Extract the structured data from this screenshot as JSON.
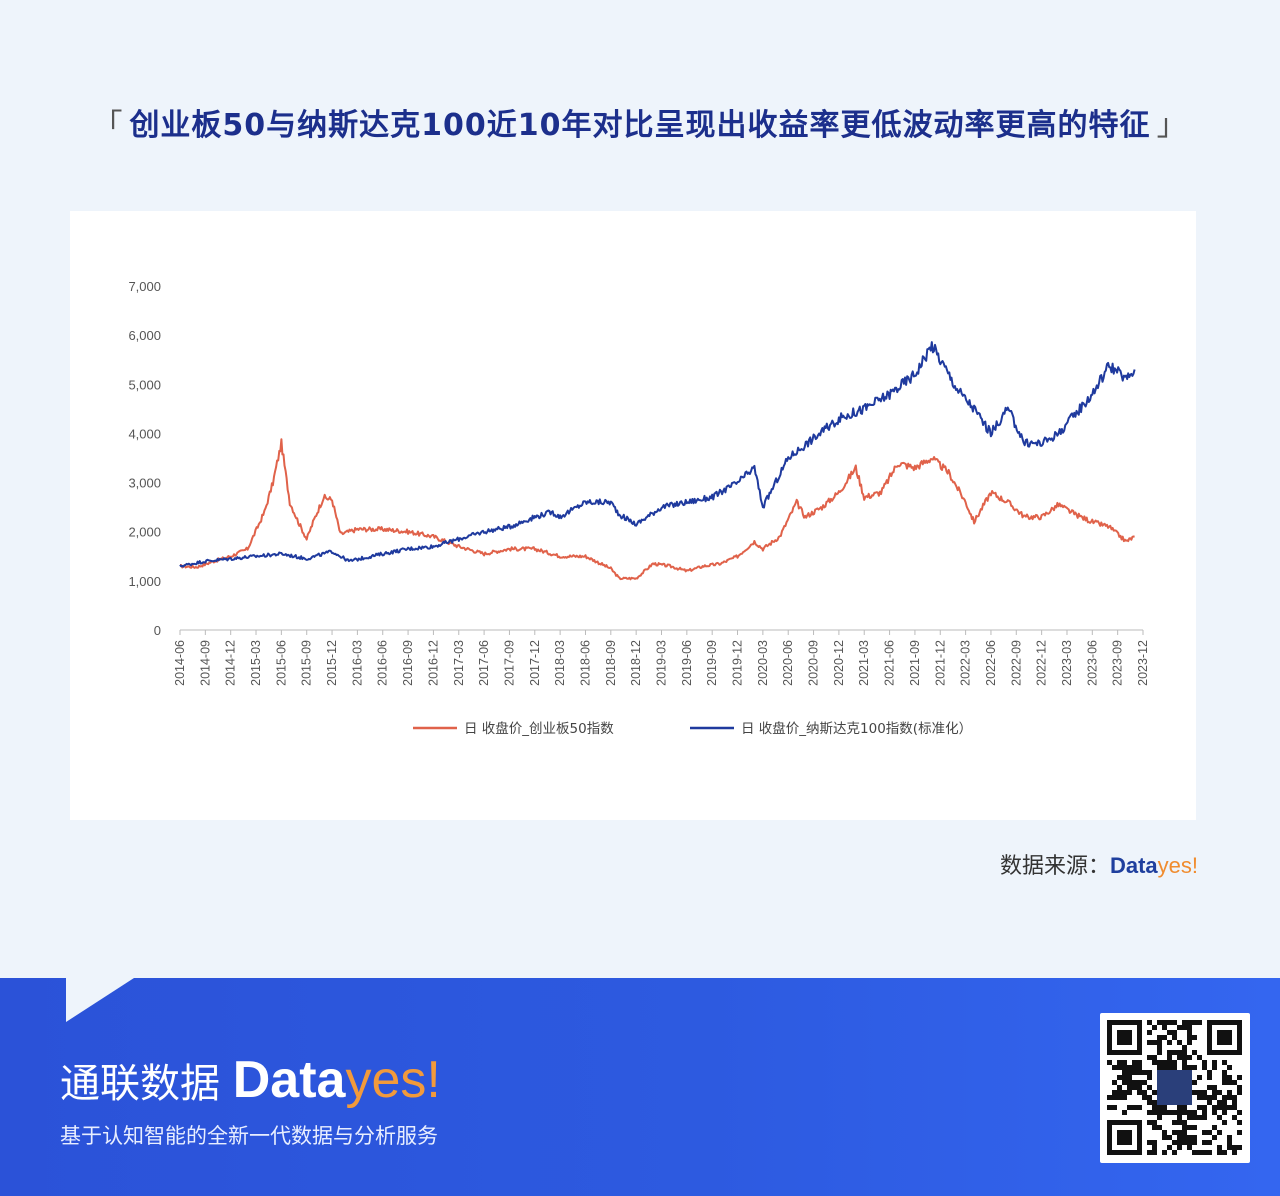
{
  "header": {
    "title": "创业板50与纳斯达克100近10年对比呈现出收益率更低波动率更高的特征",
    "bracket_left": "「",
    "bracket_right": "」"
  },
  "source": {
    "label": "数据来源：",
    "brand_part1": "Data",
    "brand_part2": "yes!"
  },
  "footer": {
    "brand_cn": "通联数据",
    "brand_part1": "Data",
    "brand_part2": "yes!",
    "slogan": "基于认知智能的全新一代数据与分析服务",
    "qr_icon": "qr-code-icon"
  },
  "colors": {
    "series_a": "#e0624a",
    "series_b": "#1f3a9e",
    "title": "#1c2f8c",
    "footer_bg": "#2d5ae0",
    "accent": "#f29a3b"
  },
  "chart_data": {
    "type": "line",
    "title": "",
    "xlabel": "",
    "ylabel": "",
    "ylim": [
      0,
      7000
    ],
    "y_ticks": [
      "0",
      "1,000",
      "2,000",
      "3,000",
      "4,000",
      "5,000",
      "6,000",
      "7,000"
    ],
    "x_tick_labels": [
      "2014-06",
      "2014-09",
      "2014-12",
      "2015-03",
      "2015-06",
      "2015-09",
      "2015-12",
      "2016-03",
      "2016-06",
      "2016-09",
      "2016-12",
      "2017-03",
      "2017-06",
      "2017-09",
      "2017-12",
      "2018-03",
      "2018-06",
      "2018-09",
      "2018-12",
      "2019-03",
      "2019-06",
      "2019-09",
      "2019-12",
      "2020-03",
      "2020-06",
      "2020-09",
      "2020-12",
      "2021-03",
      "2021-06",
      "2021-09",
      "2021-12",
      "2022-03",
      "2022-06",
      "2022-09",
      "2022-12",
      "2023-03",
      "2023-06",
      "2023-09",
      "2023-12"
    ],
    "grid": false,
    "legend_position": "bottom",
    "series": [
      {
        "name": "日 收盘价_创业板50指数",
        "x": [
          "2014-06",
          "2014-08",
          "2014-10",
          "2014-12",
          "2015-02",
          "2015-04",
          "2015-05",
          "2015-06",
          "2015-07",
          "2015-08",
          "2015-09",
          "2015-10",
          "2015-11",
          "2015-12",
          "2016-01",
          "2016-03",
          "2016-06",
          "2016-09",
          "2016-12",
          "2017-03",
          "2017-06",
          "2017-09",
          "2017-12",
          "2018-01",
          "2018-03",
          "2018-06",
          "2018-09",
          "2018-10",
          "2018-12",
          "2019-02",
          "2019-04",
          "2019-06",
          "2019-08",
          "2019-10",
          "2019-12",
          "2020-02",
          "2020-03",
          "2020-05",
          "2020-07",
          "2020-08",
          "2020-10",
          "2020-12",
          "2021-02",
          "2021-03",
          "2021-05",
          "2021-07",
          "2021-09",
          "2021-11",
          "2022-01",
          "2022-03",
          "2022-04",
          "2022-06",
          "2022-08",
          "2022-10",
          "2022-12",
          "2023-02",
          "2023-04",
          "2023-06",
          "2023-08",
          "2023-10",
          "2023-11"
        ],
        "values": [
          1300,
          1280,
          1400,
          1500,
          1650,
          2400,
          3000,
          3800,
          2600,
          2200,
          1850,
          2300,
          2700,
          2650,
          1950,
          2050,
          2050,
          2000,
          1900,
          1700,
          1550,
          1650,
          1650,
          1600,
          1500,
          1500,
          1250,
          1050,
          1050,
          1350,
          1300,
          1200,
          1300,
          1350,
          1500,
          1800,
          1650,
          1900,
          2600,
          2300,
          2500,
          2800,
          3300,
          2700,
          2800,
          3400,
          3300,
          3500,
          3200,
          2600,
          2200,
          2800,
          2600,
          2300,
          2300,
          2550,
          2350,
          2200,
          2100,
          1800,
          1900
        ]
      },
      {
        "name": "日 收盘价_纳斯达克100指数(标准化）",
        "x": [
          "2014-06",
          "2014-09",
          "2014-12",
          "2015-03",
          "2015-06",
          "2015-09",
          "2015-12",
          "2016-02",
          "2016-06",
          "2016-09",
          "2016-12",
          "2017-03",
          "2017-06",
          "2017-09",
          "2017-12",
          "2018-02",
          "2018-03",
          "2018-06",
          "2018-09",
          "2018-10",
          "2018-12",
          "2019-03",
          "2019-06",
          "2019-09",
          "2019-12",
          "2020-02",
          "2020-03",
          "2020-06",
          "2020-09",
          "2020-12",
          "2021-03",
          "2021-06",
          "2021-09",
          "2021-11",
          "2021-12",
          "2022-02",
          "2022-04",
          "2022-06",
          "2022-08",
          "2022-10",
          "2022-12",
          "2023-02",
          "2023-04",
          "2023-06",
          "2023-08",
          "2023-10",
          "2023-11"
        ],
        "values": [
          1300,
          1400,
          1450,
          1500,
          1550,
          1450,
          1600,
          1400,
          1550,
          1650,
          1700,
          1850,
          2000,
          2100,
          2300,
          2400,
          2300,
          2600,
          2600,
          2350,
          2150,
          2500,
          2600,
          2700,
          3000,
          3300,
          2500,
          3500,
          3900,
          4300,
          4500,
          4800,
          5200,
          5800,
          5500,
          4900,
          4500,
          4000,
          4500,
          3800,
          3800,
          4000,
          4400,
          4800,
          5400,
          5100,
          5300
        ]
      }
    ]
  }
}
